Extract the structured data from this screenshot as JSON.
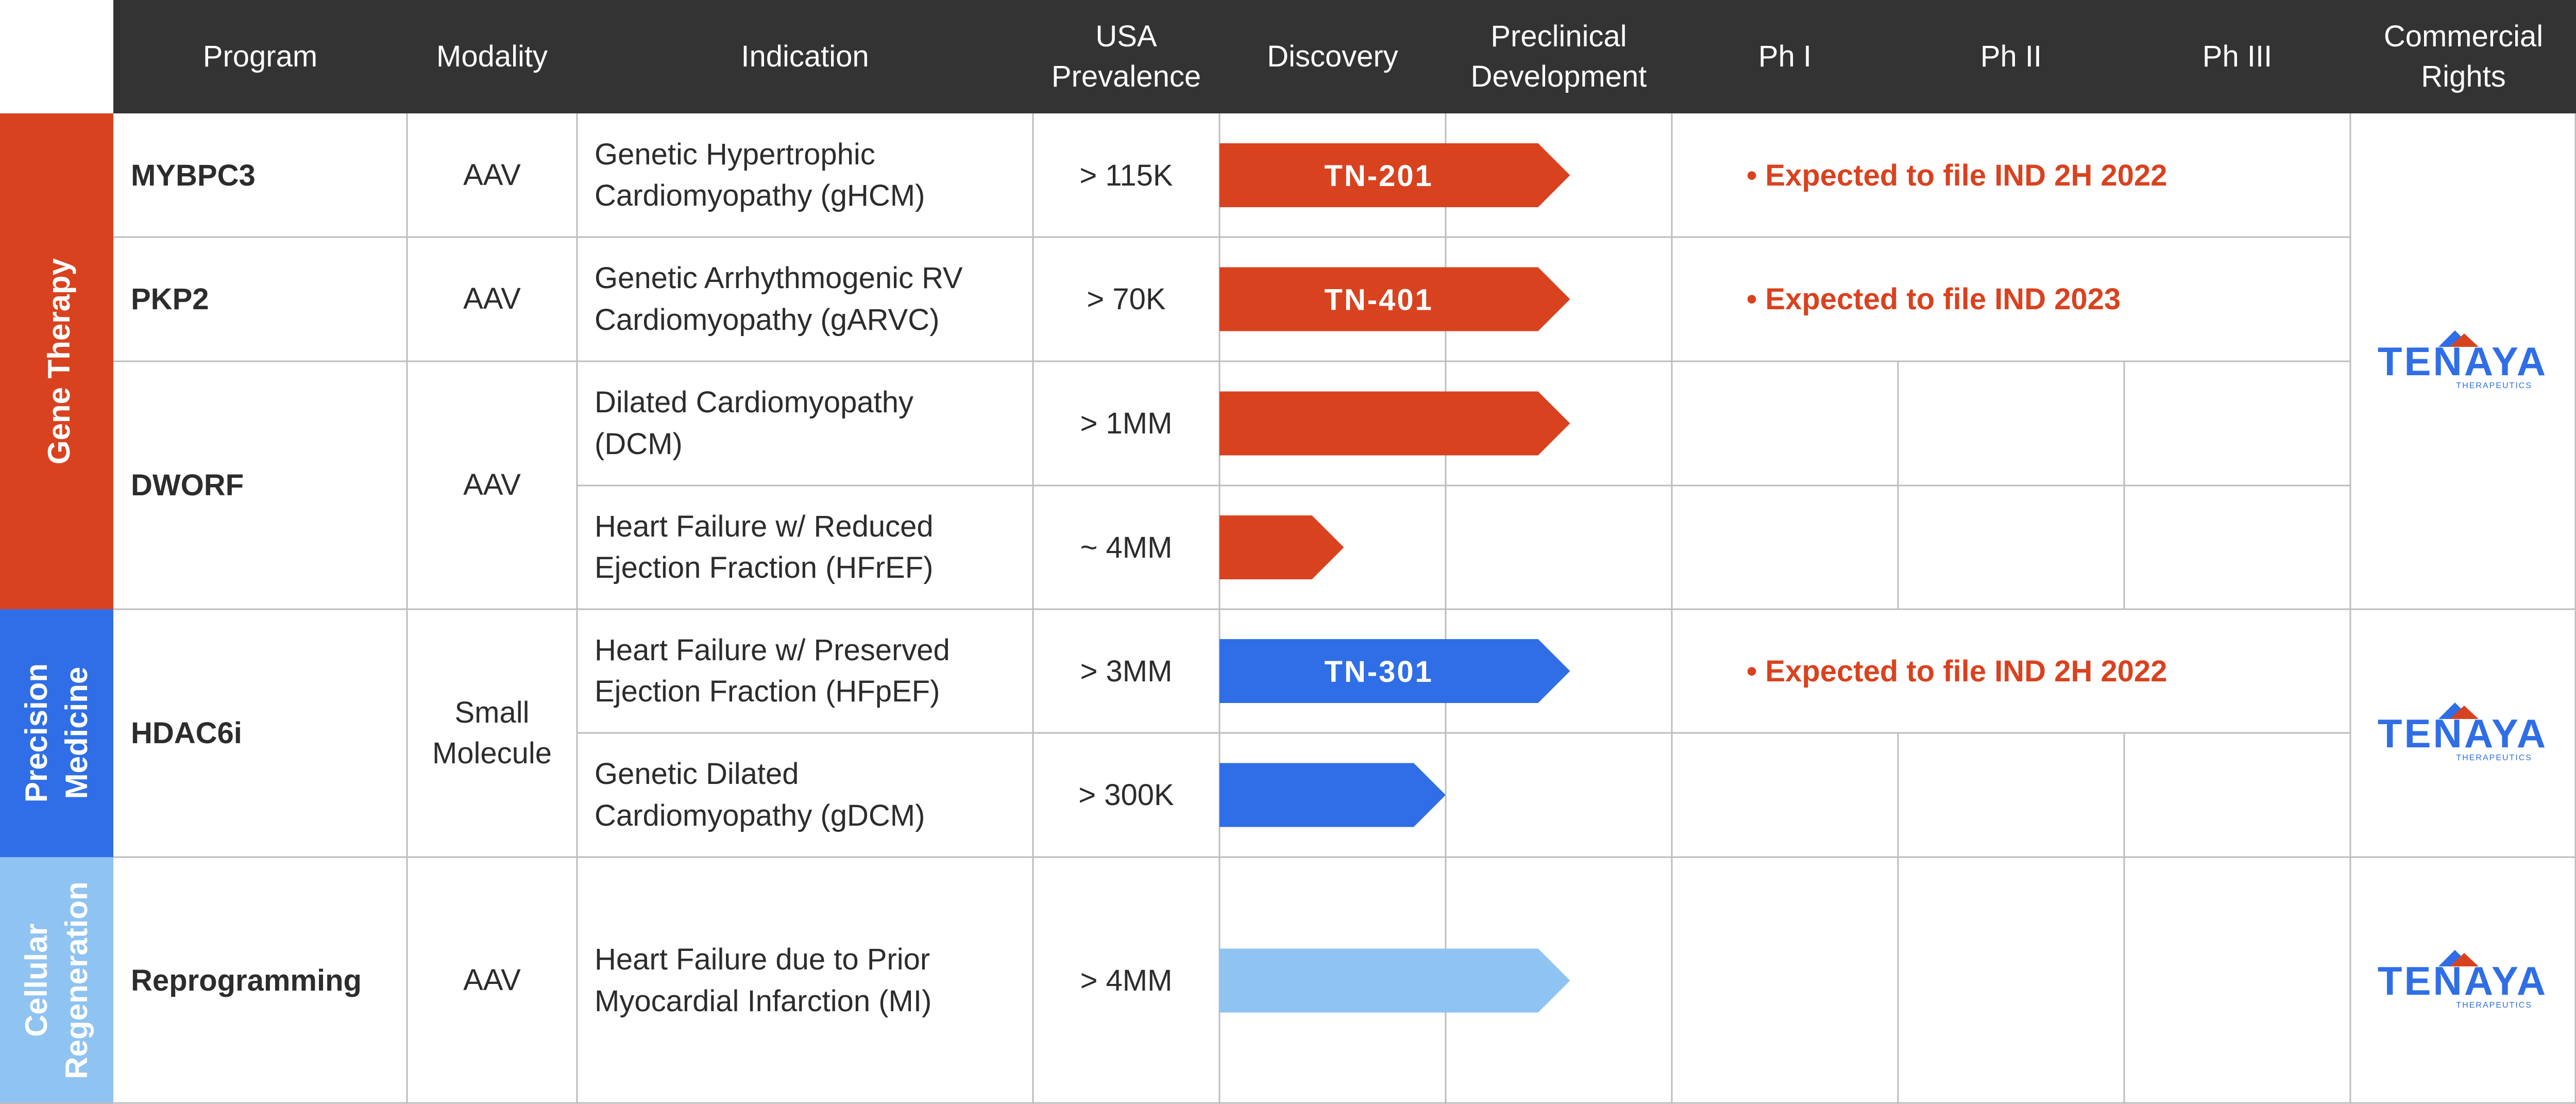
{
  "headers": {
    "program": "Program",
    "modality": "Modality",
    "indication": "Indication",
    "usa_prevalence_1": "USA",
    "usa_prevalence_2": "Prevalence",
    "discovery": "Discovery",
    "preclinical_1": "Preclinical",
    "preclinical_2": "Development",
    "ph1": "Ph I",
    "ph2": "Ph II",
    "ph3": "Ph III",
    "commercial_1": "Commercial",
    "commercial_2": "Rights"
  },
  "categories": [
    {
      "name": "Gene Therapy",
      "color": "#d9421f"
    },
    {
      "line1": "Precision",
      "line2": "Medicine",
      "color": "#2f6ee6"
    },
    {
      "line1": "Cellular",
      "line2": "Regeneration",
      "color": "#8fc3f1"
    }
  ],
  "programs": {
    "mybpc3": {
      "name": "MYBPC3",
      "modality": "AAV"
    },
    "pkp2": {
      "name": "PKP2",
      "modality": "AAV"
    },
    "dworf": {
      "name": "DWORF",
      "modality": "AAV"
    },
    "hdac6i": {
      "name": "HDAC6i",
      "modality_1": "Small",
      "modality_2": "Molecule"
    },
    "reprogramming": {
      "name": "Reprogramming",
      "modality": "AAV"
    }
  },
  "rows": [
    {
      "indication_1": "Genetic Hypertrophic",
      "indication_2": "Cardiomyopathy (gHCM)",
      "prevalence": "> 115K",
      "candidate": "TN-201",
      "note": "• Expected to file IND 2H 2022",
      "stage_progress": 1.55,
      "color": "#d9421f"
    },
    {
      "indication_1": "Genetic Arrhythmogenic RV",
      "indication_2": "Cardiomyopathy (gARVC)",
      "prevalence": "> 70K",
      "candidate": "TN-401",
      "note": "• Expected to file IND 2023",
      "stage_progress": 1.55,
      "color": "#d9421f"
    },
    {
      "indication_1": "Dilated Cardiomyopathy",
      "indication_2": "(DCM)",
      "prevalence": "> 1MM",
      "candidate": "",
      "note": "",
      "stage_progress": 1.55,
      "color": "#d9421f"
    },
    {
      "indication_1": "Heart Failure w/ Reduced",
      "indication_2": "Ejection Fraction (HFrEF)",
      "prevalence": "~ 4MM",
      "candidate": "",
      "note": "",
      "stage_progress": 0.55,
      "color": "#d9421f"
    },
    {
      "indication_1": "Heart Failure w/ Preserved",
      "indication_2": "Ejection Fraction (HFpEF)",
      "prevalence": "> 3MM",
      "candidate": "TN-301",
      "note": "• Expected to file IND 2H 2022",
      "stage_progress": 1.55,
      "color": "#2f6ee6"
    },
    {
      "indication_1": "Genetic Dilated",
      "indication_2": "Cardiomyopathy (gDCM)",
      "prevalence": "> 300K",
      "candidate": "",
      "note": "",
      "stage_progress": 1.0,
      "color": "#2f6ee6"
    },
    {
      "indication_1": "Heart Failure due to Prior",
      "indication_2": "Myocardial Infarction (MI)",
      "prevalence": "> 4MM",
      "candidate": "",
      "note": "",
      "stage_progress": 1.55,
      "color": "#8fc3f1"
    }
  ],
  "commercial_rights": {
    "logo_text": "TENAYA",
    "logo_subtext": "THERAPEUTICS",
    "logo_color": "#2f6ee6",
    "logo_peak_red": "#d9421f",
    "logo_peak_blue": "#2f6ee6"
  }
}
